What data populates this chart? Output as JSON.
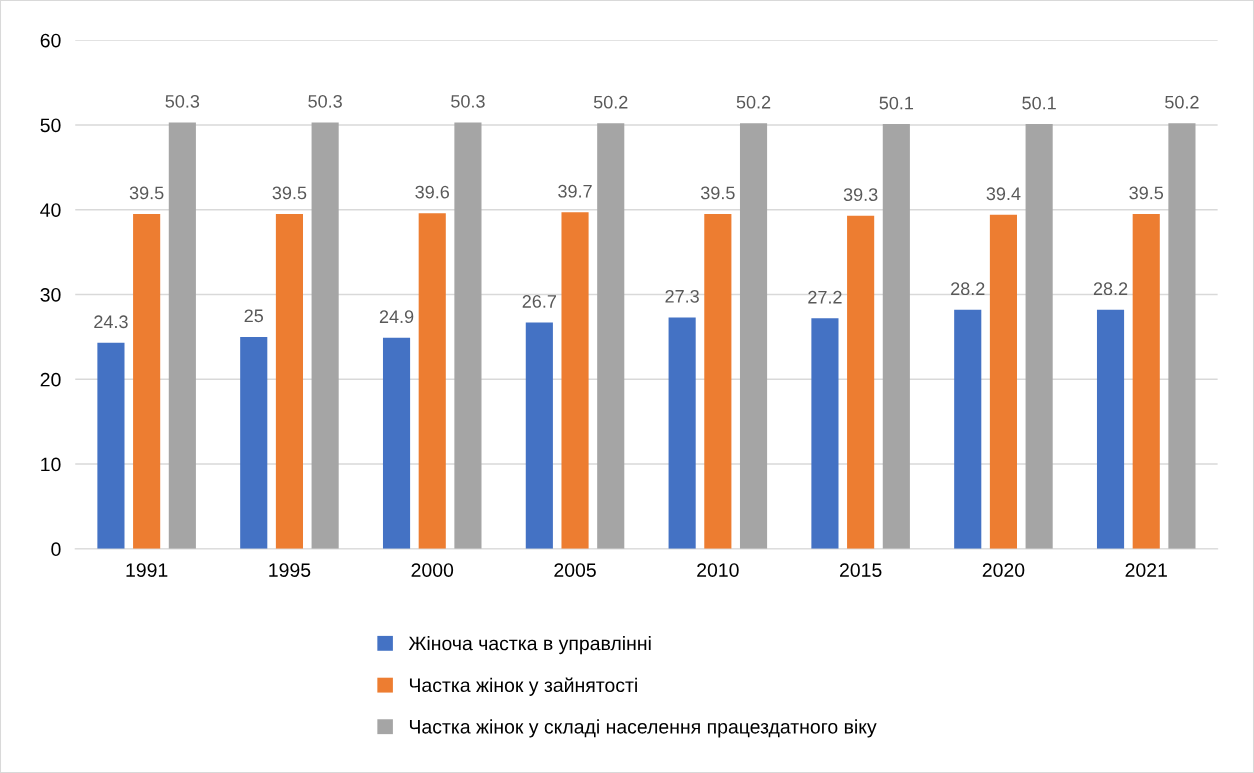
{
  "chart_data": {
    "type": "bar",
    "categories": [
      "1991",
      "1995",
      "2000",
      "2005",
      "2010",
      "2015",
      "2020",
      "2021"
    ],
    "series": [
      {
        "name": "Жіноча частка в управлінні",
        "color": "#4472c4",
        "values": [
          24.3,
          25,
          24.9,
          26.7,
          27.3,
          27.2,
          28.2,
          28.2
        ]
      },
      {
        "name": "Частка жінок у зайнятості",
        "color": "#ed7d31",
        "values": [
          39.5,
          39.5,
          39.6,
          39.7,
          39.5,
          39.3,
          39.4,
          39.5
        ]
      },
      {
        "name": "Частка жінок у складі населення працездатного віку",
        "color": "#a5a5a5",
        "values": [
          50.3,
          50.3,
          50.3,
          50.2,
          50.2,
          50.1,
          50.1,
          50.2
        ]
      }
    ],
    "ylim": [
      0,
      60
    ],
    "yticks": [
      0,
      10,
      20,
      30,
      40,
      50,
      60
    ],
    "grid": "y",
    "legend": "bottom",
    "data_labels": true
  }
}
